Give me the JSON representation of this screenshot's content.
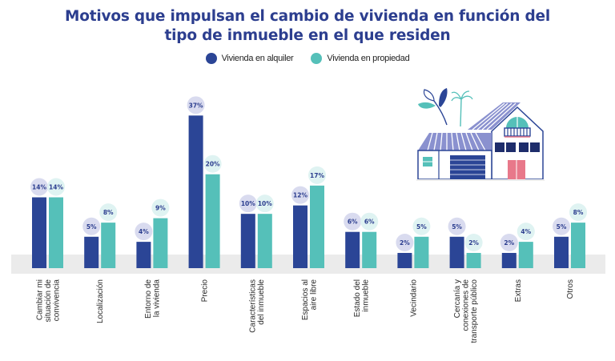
{
  "chart_data": {
    "type": "bar",
    "title": "Motivos que impulsan el cambio de vivienda en función del tipo de inmueble en el que residen",
    "title_lines": [
      "Motivos que impulsan el cambio de vivienda en función del",
      "tipo de inmueble en el que residen"
    ],
    "xlabel": "",
    "ylabel": "",
    "unit": "%",
    "legend_position": "top-center",
    "grid": false,
    "categories": [
      [
        "Cambiar mi",
        "situación de",
        "convivencia"
      ],
      [
        "Localización"
      ],
      [
        "Entorno de",
        "la vivienda"
      ],
      [
        "Precio"
      ],
      [
        "Características",
        "del inmueble"
      ],
      [
        "Espacios al",
        "aire libre"
      ],
      [
        "Estado del",
        "inmueble"
      ],
      [
        "Vecindario"
      ],
      [
        "Cercanía y",
        "conexiones de",
        "transporte público"
      ],
      [
        "Extras"
      ],
      [
        "Otros"
      ]
    ],
    "series": [
      {
        "name": "Vivienda en alquiler",
        "color": "#2b4596",
        "label_bg": "#d9dbef",
        "values": [
          14,
          5,
          4,
          37,
          10,
          12,
          6,
          2,
          5,
          2,
          5
        ]
      },
      {
        "name": "Vivienda en propiedad",
        "color": "#55c0b9",
        "label_bg": "#dff3f2",
        "values": [
          14,
          8,
          9,
          20,
          10,
          17,
          6,
          5,
          2,
          4,
          8
        ]
      }
    ],
    "label_color": "#2c3e8f",
    "baseline_band_color": "#ebebeb"
  },
  "legend": {
    "items": [
      {
        "label": "Vivienda en alquiler",
        "color": "#2b4596"
      },
      {
        "label": "Vivienda en propiedad",
        "color": "#55c0b9"
      }
    ]
  },
  "illustration": {
    "name": "house-illustration"
  }
}
